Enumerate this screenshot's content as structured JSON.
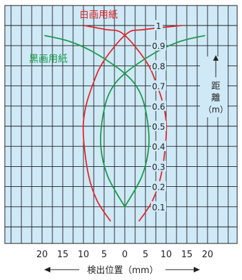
{
  "chart_data": {
    "type": "line",
    "title": "",
    "xlabel": "検出位置（mm）",
    "ylabel_chars": [
      "距",
      "離",
      "（m）"
    ],
    "xlim": [
      -20,
      20
    ],
    "ylim": [
      0,
      1
    ],
    "x_tick_values": [
      -20,
      -15,
      -10,
      -5,
      0,
      5,
      10,
      15,
      20
    ],
    "x_tick_labels": [
      "20",
      "15",
      "10",
      "5",
      "0",
      "5",
      "10",
      "15",
      "20"
    ],
    "y_tick_values": [
      0.1,
      0.2,
      0.3,
      0.4,
      0.5,
      0.6,
      0.7,
      0.8,
      0.9,
      1
    ],
    "y_tick_labels": [
      "0.1",
      "0.2",
      "0.3",
      "0.4",
      "0.5",
      "0.6",
      "0.7",
      "0.8",
      "0.9",
      "1"
    ],
    "grid": true,
    "background": "#cfe9f7",
    "series": [
      {
        "name": "白画用紙",
        "color": "#e0262b",
        "curves": [
          [
            [
              -3.5,
              0.03
            ],
            [
              -6.7,
              0.13
            ],
            [
              -8.8,
              0.26
            ],
            [
              -10.0,
              0.45
            ],
            [
              -9.6,
              0.58
            ],
            [
              -7.5,
              0.72
            ],
            [
              -4.9,
              0.83
            ],
            [
              0.5,
              0.96
            ],
            [
              4.7,
              0.98
            ],
            [
              13.7,
              1.0
            ]
          ],
          [
            [
              3.5,
              0.03
            ],
            [
              6.7,
              0.13
            ],
            [
              8.8,
              0.26
            ],
            [
              10.0,
              0.45
            ],
            [
              9.6,
              0.58
            ],
            [
              7.5,
              0.72
            ],
            [
              4.9,
              0.83
            ],
            [
              -0.5,
              0.96
            ],
            [
              -4.7,
              0.98
            ],
            [
              -9.8,
              1.0
            ]
          ]
        ]
      },
      {
        "name": "黒画用紙",
        "color": "#1a9a4a",
        "curves": [
          [
            [
              0,
              0.1
            ],
            [
              -4.1,
              0.25
            ],
            [
              -5.8,
              0.4
            ],
            [
              -5.3,
              0.55
            ],
            [
              -3.6,
              0.67
            ],
            [
              -0.1,
              0.76
            ],
            [
              6.9,
              0.86
            ],
            [
              13.2,
              0.92
            ],
            [
              19.3,
              0.95
            ]
          ],
          [
            [
              0,
              0.1
            ],
            [
              4.1,
              0.25
            ],
            [
              5.8,
              0.4
            ],
            [
              5.3,
              0.55
            ],
            [
              3.6,
              0.67
            ],
            [
              0.1,
              0.76
            ],
            [
              -6.9,
              0.86
            ],
            [
              -13.2,
              0.92
            ],
            [
              -19.3,
              0.95
            ]
          ]
        ]
      }
    ]
  }
}
